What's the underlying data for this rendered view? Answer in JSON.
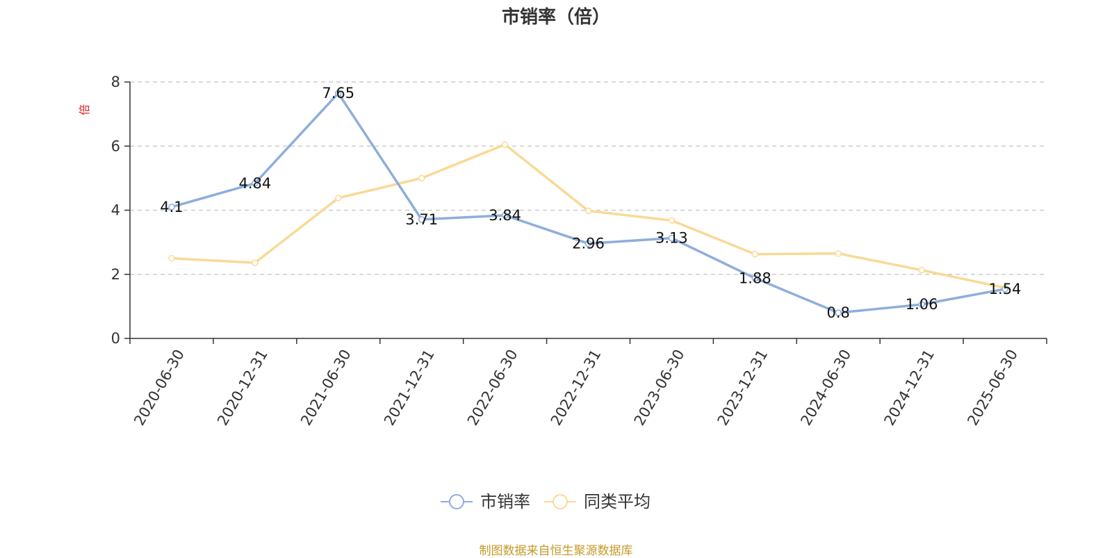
{
  "chart_data": {
    "type": "line",
    "title": "市销率（倍）",
    "ylabel": "倍",
    "ylim": [
      0,
      8
    ],
    "yticks": [
      0,
      2,
      4,
      6,
      8
    ],
    "grid": true,
    "legend_position": "bottom-center",
    "x": [
      "2020-06-30",
      "2020-12-31",
      "2021-06-30",
      "2021-12-31",
      "2022-06-30",
      "2022-12-31",
      "2023-06-30",
      "2023-12-31",
      "2024-06-30",
      "2024-12-31",
      "2025-06-30"
    ],
    "series": [
      {
        "name": "市销率",
        "color": "#8eaedb",
        "values": [
          4.1,
          4.84,
          7.65,
          3.71,
          3.84,
          2.96,
          3.13,
          1.88,
          0.8,
          1.06,
          1.54
        ],
        "labels": [
          "4.1",
          "4.84",
          "7.65",
          "3.71",
          "3.84",
          "2.96",
          "3.13",
          "1.88",
          "0.8",
          "1.06",
          "1.54"
        ]
      },
      {
        "name": "同类平均",
        "color": "#fad995",
        "values": [
          2.5,
          2.36,
          4.38,
          5.0,
          6.05,
          3.98,
          3.68,
          2.63,
          2.65,
          2.13,
          1.58
        ]
      }
    ]
  },
  "source_note": "制图数据来自恒生聚源数据库"
}
